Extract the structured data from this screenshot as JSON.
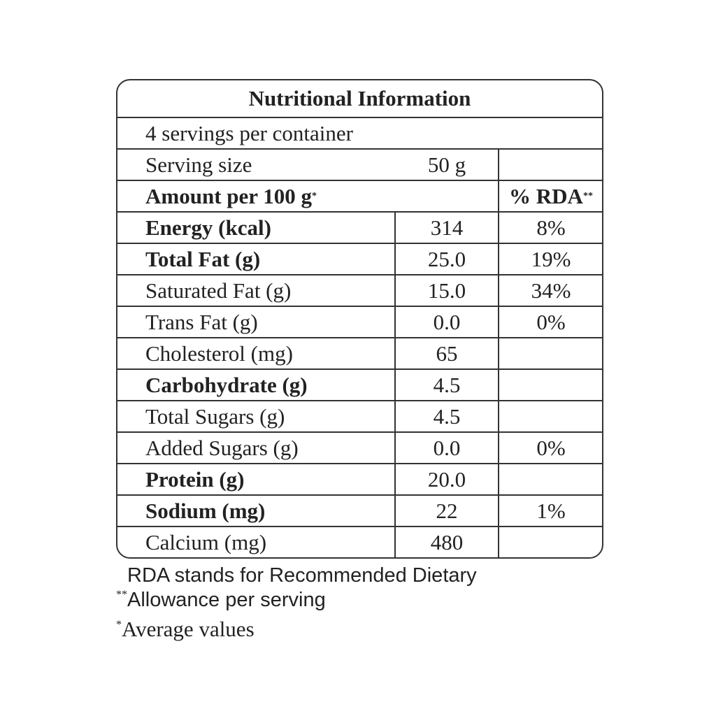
{
  "table": {
    "title": "Nutritional Information",
    "servings": "4 servings per container",
    "serving_size_label": "Serving size",
    "serving_size_value": "50 g",
    "amount_label": "Amount per 100 g",
    "amount_mark": "*",
    "rda_label": "% RDA",
    "rda_mark": "**",
    "rows": [
      {
        "name": "Energy (kcal)",
        "value": "314",
        "rda": "8%"
      },
      {
        "name": "Total Fat (g)",
        "value": "25.0",
        "rda": "19%"
      },
      {
        "name": "Saturated Fat (g)",
        "value": "15.0",
        "rda": "34%"
      },
      {
        "name": "Trans Fat (g)",
        "value": "0.0",
        "rda": "0%"
      },
      {
        "name": "Cholesterol (mg)",
        "value": "65",
        "rda": ""
      },
      {
        "name": "Carbohydrate (g)",
        "value": "4.5",
        "rda": ""
      },
      {
        "name": "Total Sugars (g)",
        "value": "4.5",
        "rda": ""
      },
      {
        "name": "Added Sugars (g)",
        "value": "0.0",
        "rda": "0%"
      },
      {
        "name": "Protein (g)",
        "value": "20.0",
        "rda": ""
      },
      {
        "name": "Sodium (mg)",
        "value": "22",
        "rda": "1%"
      },
      {
        "name": "Calcium (mg)",
        "value": "480",
        "rda": ""
      }
    ]
  },
  "footnotes": {
    "rda_mark": "**",
    "rda_text": "RDA stands for Recommended Dietary Allowance per serving",
    "avg_mark": "*",
    "avg_text": "Average values"
  }
}
